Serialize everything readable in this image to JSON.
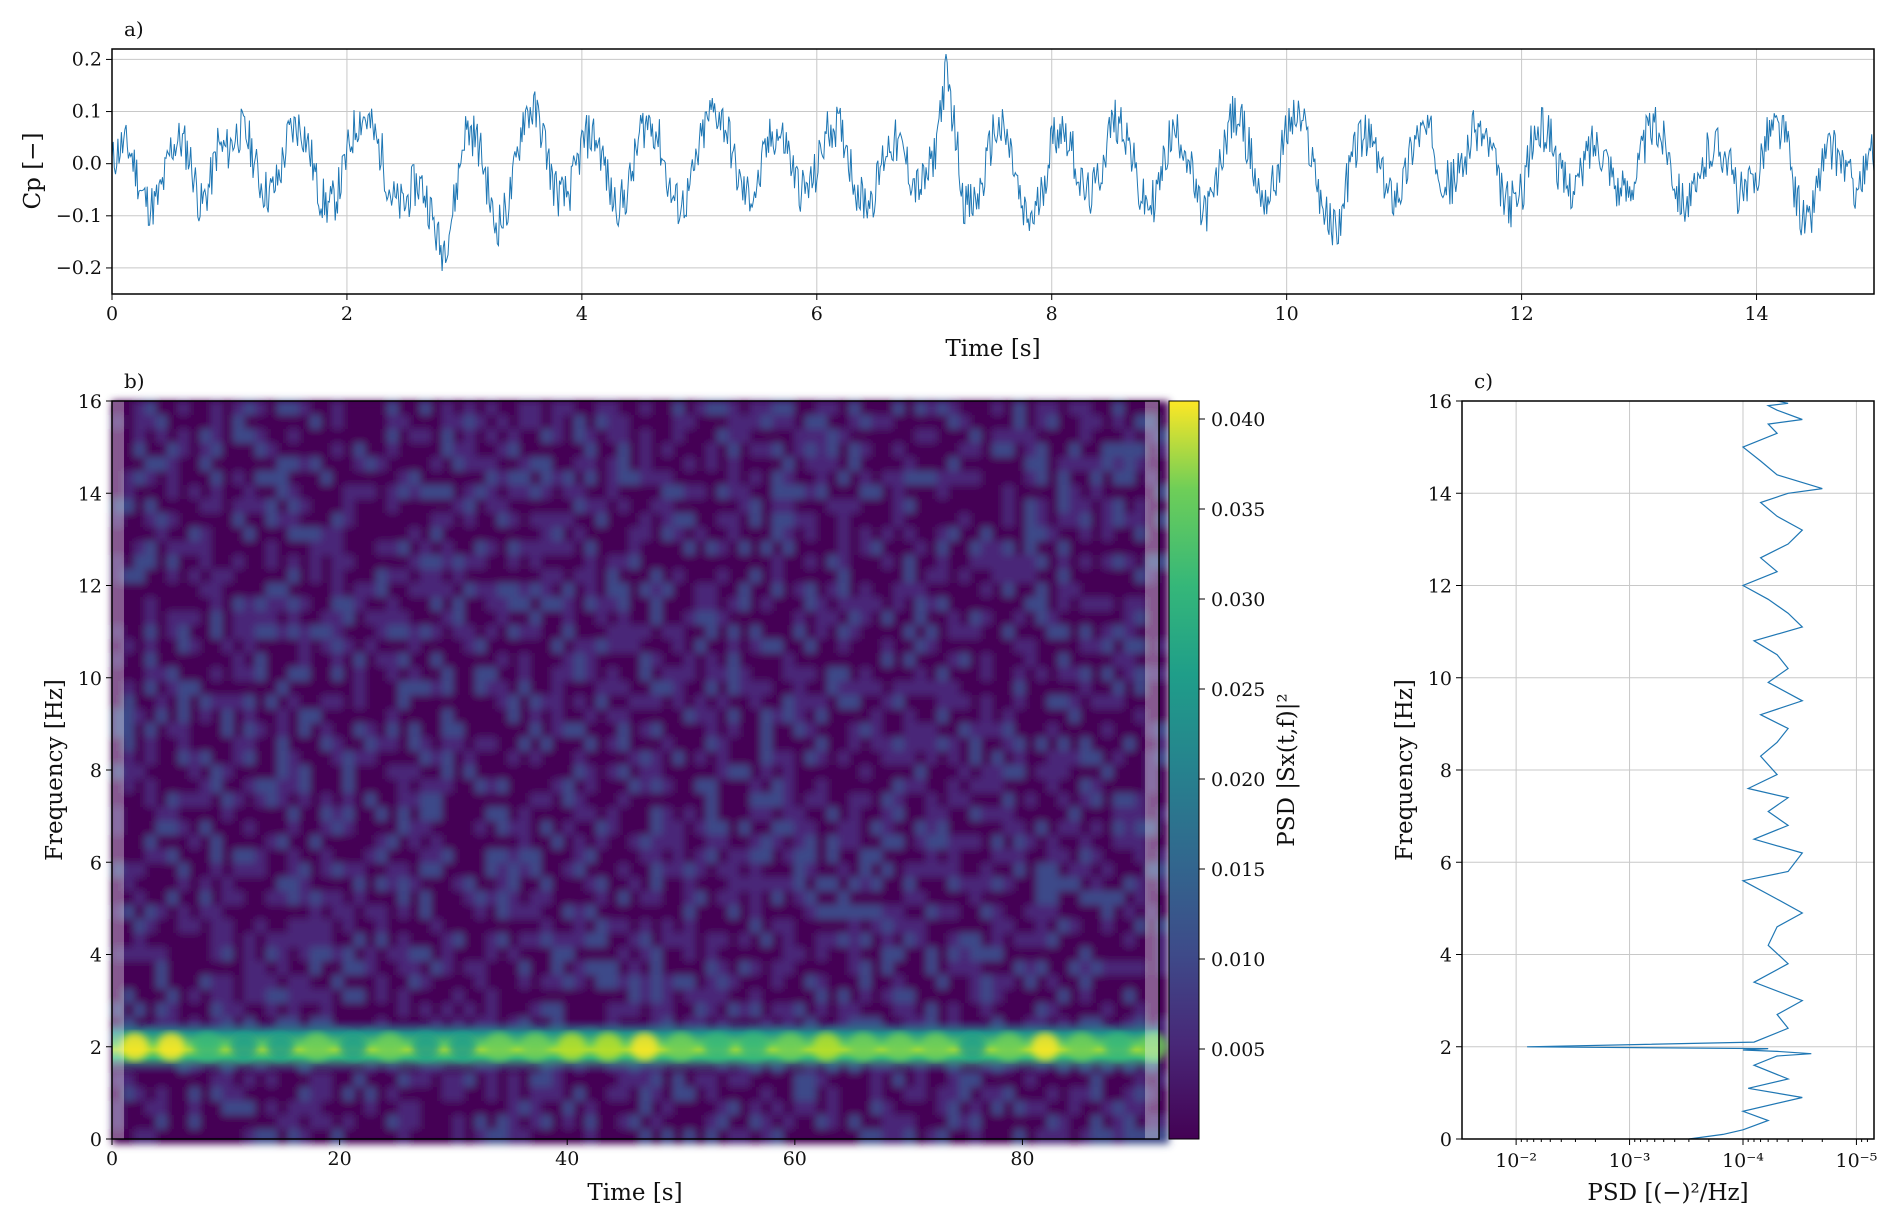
{
  "chart_data": [
    {
      "id": "a",
      "panel_label": "a)",
      "type": "line",
      "xlabel": "Time [s]",
      "ylabel": "Cp [−]",
      "xlim": [
        0,
        15
      ],
      "ylim": [
        -0.25,
        0.22
      ],
      "xticks": [
        0,
        2,
        4,
        6,
        8,
        10,
        12,
        14
      ],
      "xtick_labels": [
        "0",
        "2",
        "4",
        "6",
        "8",
        "10",
        "12",
        "14"
      ],
      "yticks": [
        -0.2,
        -0.1,
        0.0,
        0.1,
        0.2
      ],
      "ytick_labels": [
        "−0.2",
        "−0.1",
        "0.0",
        "0.1",
        "0.2"
      ],
      "grid": true,
      "color": "#1f77b4",
      "series": [
        {
          "x": [
            0,
            0.25,
            0.5,
            0.75,
            0.9,
            1.0,
            1.25,
            1.5,
            1.75,
            2.0,
            2.3,
            2.5,
            2.8,
            3.0,
            3.25,
            3.5,
            3.75,
            4.0,
            4.25,
            4.5,
            4.75,
            5.0,
            5.25,
            5.5,
            5.75,
            6.0,
            6.25,
            6.5,
            6.75,
            7.0,
            7.1,
            7.25,
            7.5,
            7.75,
            8.0,
            8.25,
            8.5,
            8.75,
            9.0,
            9.25,
            9.5,
            9.75,
            10.0,
            10.25,
            10.45,
            10.75,
            11.0,
            11.25,
            11.5,
            11.75,
            12.0,
            12.25,
            12.5,
            12.75,
            13.0,
            13.25,
            13.5,
            13.75,
            14.0,
            14.25,
            14.45,
            14.75,
            15.0
          ],
          "y": [
            0.0,
            -0.1,
            0.05,
            -0.15,
            0.17,
            0.05,
            -0.05,
            0.09,
            -0.08,
            0.02,
            0.1,
            -0.15,
            -0.23,
            0.1,
            -0.2,
            0.15,
            -0.05,
            0.05,
            -0.1,
            0.1,
            -0.08,
            0.03,
            0.12,
            -0.1,
            0.08,
            -0.05,
            0.1,
            -0.12,
            0.05,
            0.0,
            0.2,
            -0.1,
            0.08,
            -0.15,
            0.05,
            -0.05,
            0.1,
            -0.08,
            0.05,
            -0.12,
            0.1,
            -0.05,
            0.08,
            0.0,
            -0.18,
            0.1,
            -0.1,
            0.12,
            -0.05,
            0.08,
            -0.15,
            0.15,
            -0.1,
            0.05,
            -0.05,
            0.1,
            -0.15,
            0.08,
            -0.1,
            0.15,
            -0.2,
            0.05,
            0.0
          ]
        }
      ]
    },
    {
      "id": "b",
      "panel_label": "b)",
      "type": "heatmap",
      "xlabel": "Time [s]",
      "ylabel": "Frequency [Hz]",
      "xlim": [
        0,
        92
      ],
      "ylim": [
        0,
        16
      ],
      "xticks": [
        0,
        20,
        40,
        60,
        80
      ],
      "xtick_labels": [
        "0",
        "20",
        "40",
        "60",
        "80"
      ],
      "yticks": [
        0,
        2,
        4,
        6,
        8,
        10,
        12,
        14,
        16
      ],
      "ytick_labels": [
        "0",
        "2",
        "4",
        "6",
        "8",
        "10",
        "12",
        "14",
        "16"
      ],
      "colormap": "viridis",
      "colorbar": {
        "label": "PSD |Sx(t,f)|²",
        "range": [
          0,
          0.041
        ],
        "ticks": [
          0.005,
          0.01,
          0.015,
          0.02,
          0.025,
          0.03,
          0.035,
          0.04
        ],
        "tick_labels": [
          "0.005",
          "0.010",
          "0.015",
          "0.020",
          "0.025",
          "0.030",
          "0.035",
          "0.040"
        ]
      },
      "dominant_band_hz": 2.0,
      "background_level": 0.004,
      "band_peak_level": 0.04
    },
    {
      "id": "c",
      "panel_label": "c)",
      "type": "line",
      "xlabel": "PSD [(−)²/Hz]",
      "ylabel": "Frequency [Hz]",
      "xscale": "log",
      "xaxis_inverted": true,
      "xlim": [
        0.03,
        7e-06
      ],
      "ylim": [
        0,
        16
      ],
      "xticks": [
        0.01,
        0.001,
        0.0001,
        1e-05
      ],
      "xtick_labels": [
        "10⁻²",
        "10⁻³",
        "10⁻⁴",
        "10⁻⁵"
      ],
      "yticks": [
        0,
        2,
        4,
        6,
        8,
        10,
        12,
        14,
        16
      ],
      "ytick_labels": [
        "0",
        "2",
        "4",
        "6",
        "8",
        "10",
        "12",
        "14",
        "16"
      ],
      "grid": true,
      "color": "#1f77b4",
      "series": [
        {
          "psd": [
            0.0003,
            0.00015,
            0.0001,
            6e-05,
            0.0001,
            3e-05,
            9e-05,
            4e-05,
            8e-05,
            5e-05,
            2.5e-05,
            5e-05,
            0.0001,
            6e-05,
            0.008,
            8e-05,
            4e-05,
            5e-05,
            3e-05,
            8e-05,
            4e-05,
            6e-05,
            5e-05,
            3e-05,
            5e-05,
            0.0001,
            4e-05,
            3e-05,
            8e-05,
            4e-05,
            6e-05,
            4e-05,
            9e-05,
            5e-05,
            7e-05,
            5e-05,
            4e-05,
            7e-05,
            3e-05,
            6e-05,
            4e-05,
            5e-05,
            8e-05,
            3e-05,
            4e-05,
            6e-05,
            0.0001,
            5e-05,
            7e-05,
            4e-05,
            3e-05,
            5e-05,
            7e-05,
            4e-05,
            2e-05,
            5e-05,
            7e-05,
            0.0001,
            5e-05,
            6e-05,
            3e-05,
            5e-05,
            6e-05,
            4e-05,
            5e-05
          ],
          "freq": [
            0.0,
            0.1,
            0.2,
            0.4,
            0.6,
            0.9,
            1.1,
            1.3,
            1.6,
            1.8,
            1.85,
            1.9,
            1.93,
            1.96,
            2.0,
            2.1,
            2.4,
            2.7,
            3.0,
            3.4,
            3.8,
            4.2,
            4.6,
            4.9,
            5.2,
            5.6,
            5.8,
            6.2,
            6.5,
            6.8,
            7.1,
            7.4,
            7.6,
            7.9,
            8.3,
            8.6,
            8.9,
            9.2,
            9.5,
            9.9,
            10.2,
            10.5,
            10.8,
            11.1,
            11.4,
            11.7,
            12.0,
            12.3,
            12.6,
            12.9,
            13.2,
            13.5,
            13.8,
            14.0,
            14.1,
            14.4,
            14.7,
            15.0,
            15.3,
            15.5,
            15.6,
            15.8,
            15.9,
            15.95,
            16.0
          ]
        }
      ]
    }
  ]
}
